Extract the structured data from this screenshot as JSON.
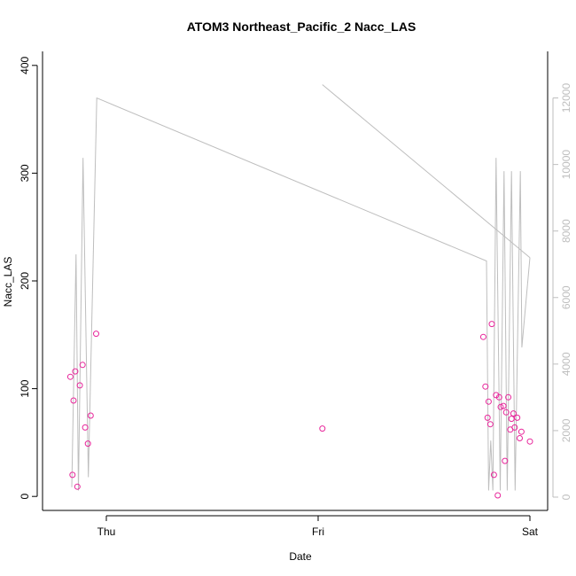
{
  "chart_data": {
    "type": "scatter",
    "title": "ATOM3 Northeast_Pacific_2 Nacc_LAS",
    "xlabel": "Date",
    "ylabel": "Nacc_LAS",
    "x_unit": "days (Thu = 0)",
    "x_ticks": [
      {
        "value": 0,
        "label": "Thu"
      },
      {
        "value": 1,
        "label": "Fri"
      },
      {
        "value": 2,
        "label": "Sat"
      }
    ],
    "y_left_ticks": [
      0,
      100,
      200,
      300,
      400
    ],
    "y_left_range": [
      -13,
      413
    ],
    "y_right_ticks": [
      0,
      2000,
      4000,
      6000,
      8000,
      10000,
      12000
    ],
    "y_right_range": [
      -400,
      13400
    ],
    "colors": {
      "points": "#e8269b",
      "line": "#bebebe",
      "axis": "#000000",
      "right_axis": "#bebebe"
    },
    "series": [
      {
        "axis": "left",
        "style": "points",
        "points": [
          [
            -0.17,
            111
          ],
          [
            -0.16,
            20
          ],
          [
            -0.155,
            89
          ],
          [
            -0.147,
            116
          ],
          [
            -0.137,
            9
          ],
          [
            -0.125,
            103
          ],
          [
            -0.112,
            122
          ],
          [
            -0.1,
            64
          ],
          [
            -0.087,
            49
          ],
          [
            -0.074,
            75
          ],
          [
            -0.048,
            151
          ],
          [
            1.02,
            63
          ],
          [
            1.78,
            148
          ],
          [
            1.79,
            102
          ],
          [
            1.8,
            73
          ],
          [
            1.805,
            88
          ],
          [
            1.813,
            67
          ],
          [
            1.82,
            160
          ],
          [
            1.83,
            20
          ],
          [
            1.84,
            94
          ],
          [
            1.848,
            1
          ],
          [
            1.855,
            92
          ],
          [
            1.862,
            83
          ],
          [
            1.875,
            84
          ],
          [
            1.882,
            33
          ],
          [
            1.888,
            78
          ],
          [
            1.898,
            92
          ],
          [
            1.907,
            62
          ],
          [
            1.913,
            72
          ],
          [
            1.922,
            77
          ],
          [
            1.928,
            64
          ],
          [
            1.94,
            73
          ],
          [
            1.952,
            54
          ],
          [
            1.96,
            60
          ],
          [
            2.0,
            51
          ]
        ]
      },
      {
        "axis": "right",
        "style": "line",
        "segments": [
          [
            [
              -0.163,
              300
            ],
            [
              -0.143,
              7300
            ],
            [
              -0.132,
              200
            ],
            [
              -0.11,
              10200
            ],
            [
              -0.085,
              600
            ],
            [
              -0.045,
              12000
            ],
            [
              1.795,
              7100
            ],
            [
              1.805,
              200
            ],
            [
              1.815,
              1700
            ],
            [
              1.825,
              200
            ],
            [
              1.84,
              10200
            ],
            [
              1.86,
              200
            ],
            [
              1.878,
              9800
            ],
            [
              1.893,
              200
            ],
            [
              1.913,
              9800
            ],
            [
              1.93,
              200
            ],
            [
              1.955,
              9800
            ],
            [
              1.962,
              4500
            ],
            [
              2.0,
              7200
            ]
          ],
          [
            [
              1.02,
              12400
            ],
            [
              2.0,
              7200
            ]
          ]
        ]
      }
    ]
  }
}
